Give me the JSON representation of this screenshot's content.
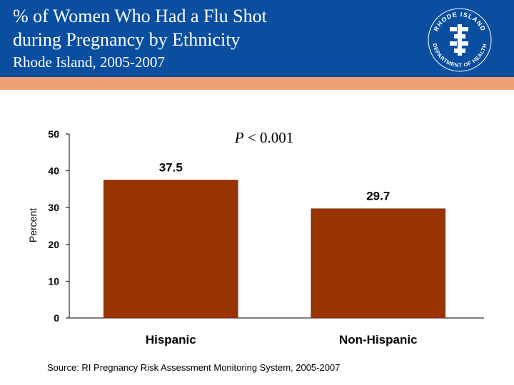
{
  "header": {
    "title_line1": "% of Women Who Had a Flu Shot",
    "title_line2": "during Pregnancy  by Ethnicity",
    "subtitle": "Rhode Island, 2005-2007",
    "logo_text_top": "RHODE ISLAND",
    "logo_text_bottom": "DEPARTMENT OF HEALTH"
  },
  "colors": {
    "header_bg": "#0a4ea0",
    "stripe": "#efa072",
    "bar": "#993300"
  },
  "chart_data": {
    "type": "bar",
    "title": "",
    "annotation_p": "P",
    "annotation_rest": " < 0.001",
    "xlabel": "",
    "ylabel": "Percent",
    "ylim": [
      0,
      50
    ],
    "yticks": [
      0,
      10,
      20,
      30,
      40,
      50
    ],
    "categories": [
      "Hispanic",
      "Non-Hispanic"
    ],
    "values": [
      37.5,
      29.7
    ],
    "value_labels": [
      "37.5",
      "29.7"
    ]
  },
  "footer": {
    "source": "Source: RI Pregnancy Risk Assessment Monitoring System, 2005-2007"
  }
}
